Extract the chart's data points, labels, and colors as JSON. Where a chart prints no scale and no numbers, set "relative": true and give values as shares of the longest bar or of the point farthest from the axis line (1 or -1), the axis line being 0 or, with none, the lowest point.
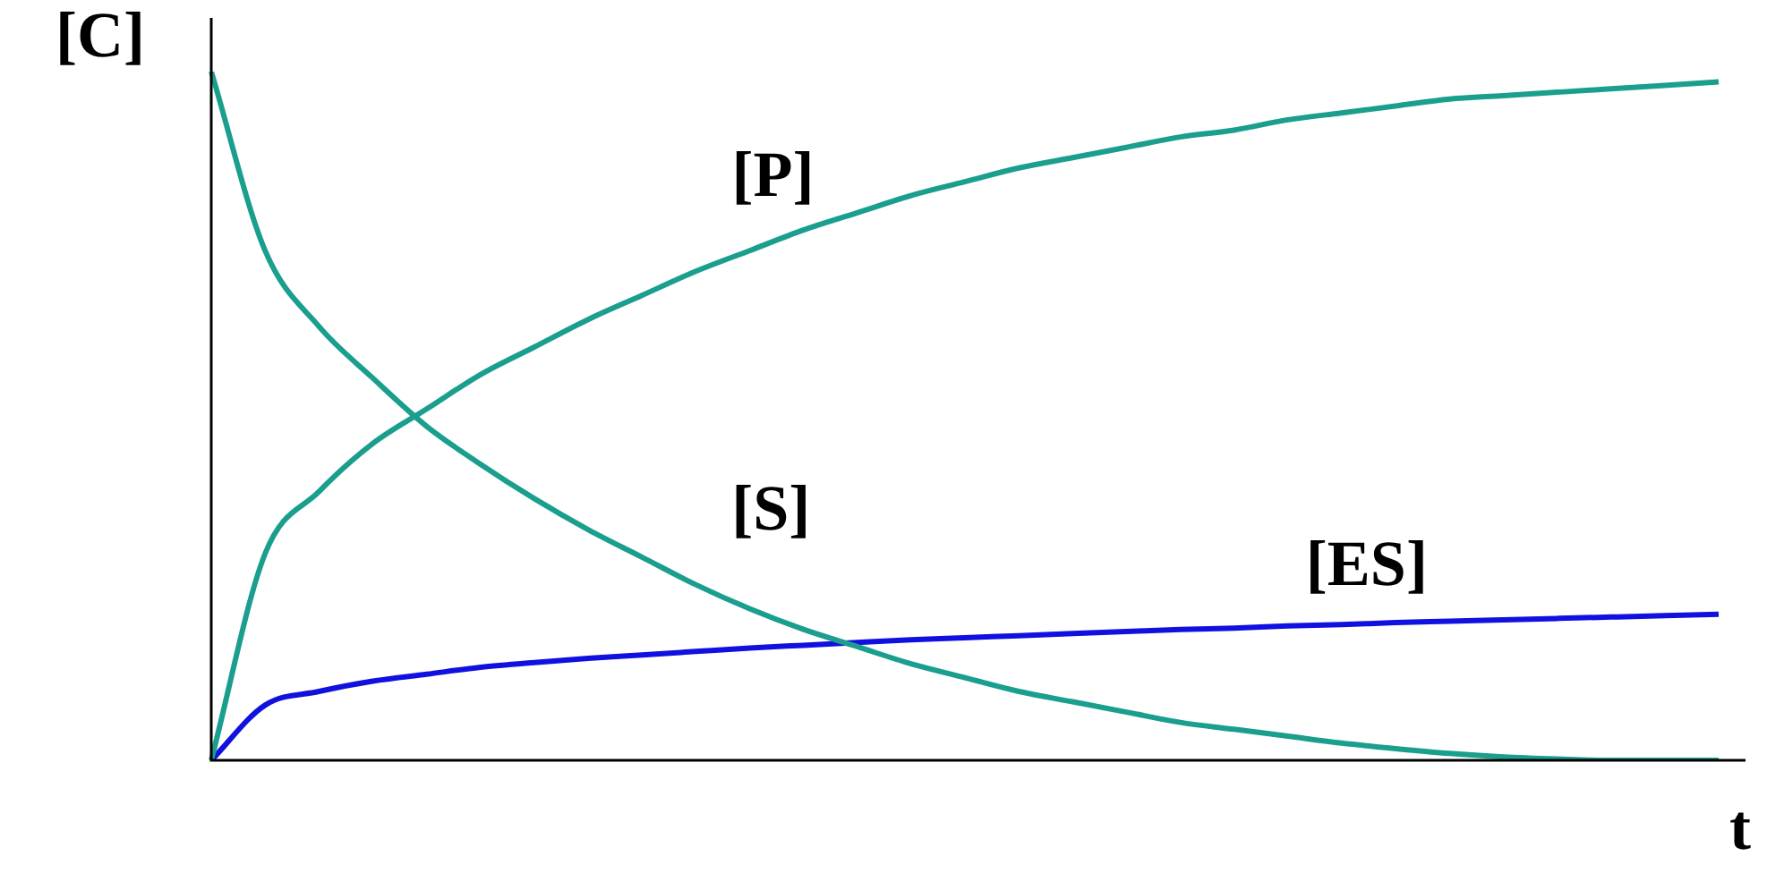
{
  "chart_data": {
    "type": "line",
    "relative": true,
    "xlabel": "t",
    "ylabel": "[C]",
    "legend": false,
    "grid": false,
    "marker": "none",
    "line_style": "solid",
    "categories": [
      null,
      null,
      null,
      null,
      null,
      null,
      null,
      null,
      null,
      null,
      null,
      null,
      null,
      null,
      null,
      null,
      null,
      null,
      null,
      null,
      null,
      null,
      null,
      null,
      null,
      null,
      null,
      null,
      null
    ],
    "series": [
      {
        "name": "[P]",
        "color": "#1a9e8e",
        "values": [
          0,
          0.3,
          0.39,
          0.46,
          0.51,
          0.56,
          0.6,
          0.64,
          0.675,
          0.71,
          0.74,
          0.77,
          0.795,
          0.82,
          0.84,
          0.86,
          0.875,
          0.89,
          0.905,
          0.915,
          0.93,
          0.94,
          0.95,
          0.96,
          0.965,
          0.97,
          0.975,
          0.98,
          0.985
        ]
      },
      {
        "name": "[S]",
        "color": "#1a9e8e",
        "values": [
          1,
          0.74,
          0.63,
          0.555,
          0.485,
          0.43,
          0.38,
          0.335,
          0.295,
          0.255,
          0.22,
          0.19,
          0.165,
          0.14,
          0.12,
          0.1,
          0.085,
          0.07,
          0.055,
          0.045,
          0.035,
          0.025,
          0.017,
          0.01,
          0.005,
          0.002,
          0,
          0,
          0
        ]
      },
      {
        "name": "[ES]",
        "color": "#1010e0",
        "values": [
          0,
          0.08,
          0.1,
          0.115,
          0.125,
          0.135,
          0.142,
          0.148,
          0.153,
          0.158,
          0.163,
          0.167,
          0.171,
          0.175,
          0.178,
          0.181,
          0.184,
          0.187,
          0.19,
          0.192,
          0.195,
          0.197,
          0.2,
          0.202,
          0.204,
          0.206,
          0.208,
          0.21,
          0.212
        ]
      }
    ]
  }
}
